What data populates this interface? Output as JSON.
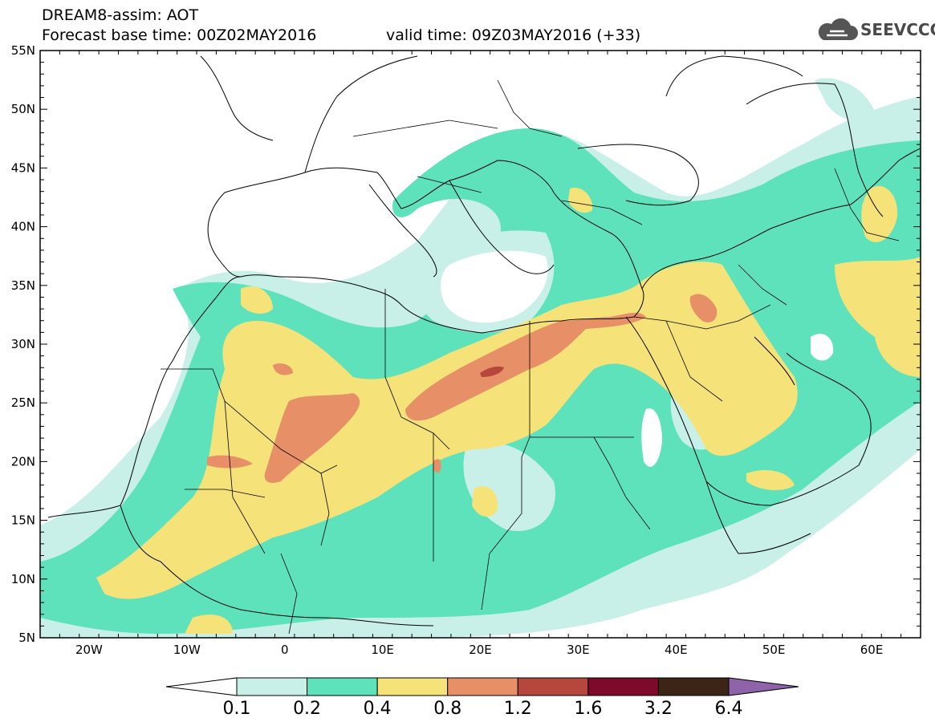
{
  "header": {
    "title": "DREAM8-assim: AOT",
    "base_time": "Forecast base time: 00Z02MAY2016",
    "valid_time": "valid time: 09Z03MAY2016 (+33)"
  },
  "logo": {
    "text": "SEEVCCC",
    "icon": "cloud-icon",
    "color": "#555555"
  },
  "map": {
    "lat_labels": [
      "55N",
      "50N",
      "45N",
      "40N",
      "35N",
      "30N",
      "25N",
      "20N",
      "15N",
      "10N",
      "5N"
    ],
    "lon_labels": [
      "20W",
      "10W",
      "0",
      "10E",
      "20E",
      "30E",
      "40E",
      "50E",
      "60E"
    ],
    "lon_range": [
      -25,
      65
    ],
    "lat_range": [
      5,
      55
    ]
  },
  "colorbar": {
    "labels": [
      "0.1",
      "0.2",
      "0.4",
      "0.8",
      "1.2",
      "1.6",
      "3.2",
      "6.4"
    ],
    "colors": [
      "#ffffff",
      "#c8f0e8",
      "#5de2bb",
      "#f5e37a",
      "#e78f67",
      "#b6473c",
      "#7d0a2a",
      "#3c2417",
      "#8f63a9"
    ]
  }
}
